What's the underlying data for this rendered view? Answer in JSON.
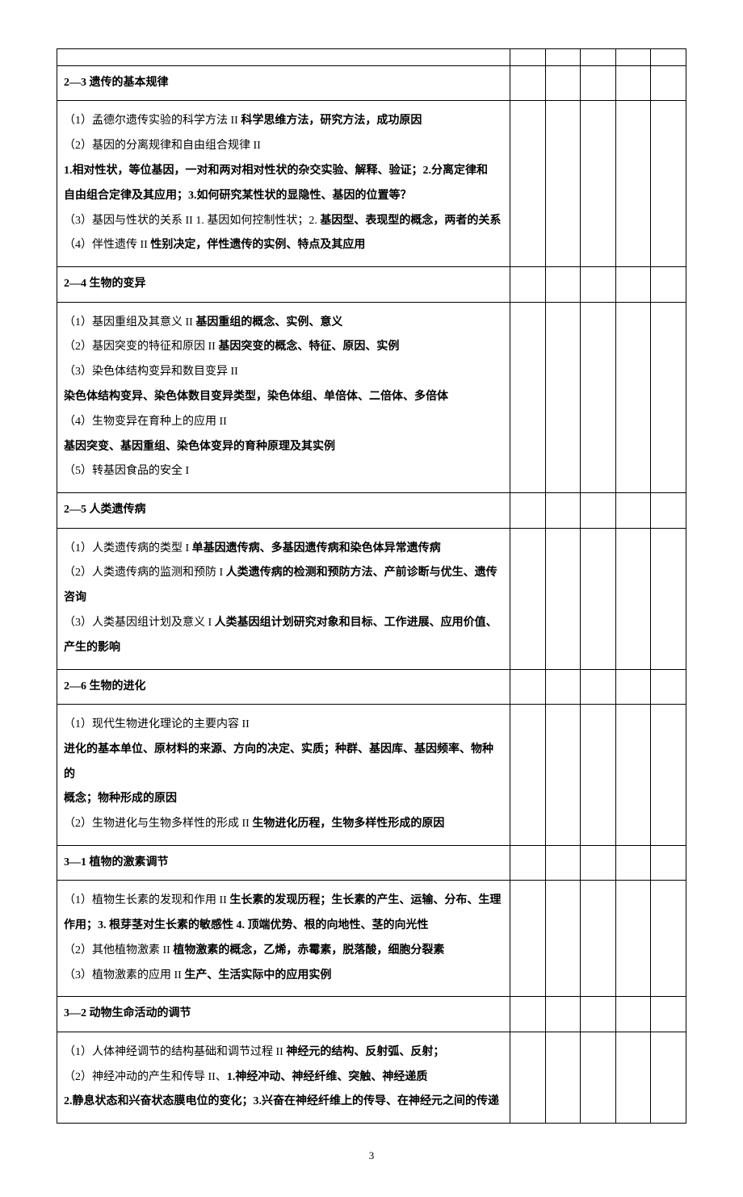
{
  "rows": [
    {
      "type": "blank"
    },
    {
      "type": "section",
      "title": "2—3 遗传的基本规律"
    },
    {
      "type": "content",
      "lines": [
        {
          "spans": [
            {
              "text": "（1）孟德尔遗传实验的科学方法  II "
            },
            {
              "text": "科学思维方法，研究方法，成功原因",
              "bold": true
            }
          ]
        },
        {
          "spans": [
            {
              "text": "（2）基因的分离规律和自由组合规律 II"
            }
          ]
        },
        {
          "spans": [
            {
              "text": "    1.相对性状，等位基因，一对和两对相对性状的杂交实验、解释、验证；2.分离定律和",
              "bold": true
            }
          ]
        },
        {
          "spans": [
            {
              "text": "自由组合定律及其应用；3.如何研究某性状的显隐性、基因的位置等？",
              "bold": true
            }
          ]
        },
        {
          "spans": [
            {
              "text": "（3）基因与性状的关系 II  1. 基因如何控制性状；2. "
            },
            {
              "text": "基因型、表现型的概念，两者的关系",
              "bold": true
            }
          ]
        },
        {
          "spans": [
            {
              "text": "（4）伴性遗传  II   "
            },
            {
              "text": "性别决定，伴性遗传的实例、特点及其应用",
              "bold": true
            }
          ]
        }
      ]
    },
    {
      "type": "section",
      "title": "2—4 生物的变异"
    },
    {
      "type": "content",
      "lines": [
        {
          "spans": [
            {
              "text": "（1）基因重组及其意义  II "
            },
            {
              "text": "基因重组的概念、实例、意义",
              "bold": true
            }
          ]
        },
        {
          "spans": [
            {
              "text": "（2）基因突变的特征和原因  II "
            },
            {
              "text": "基因突变的概念、特征、原因、实例",
              "bold": true
            }
          ]
        },
        {
          "spans": [
            {
              "text": "（3）染色体结构变异和数目变异 II"
            }
          ]
        },
        {
          "spans": [
            {
              "text": "染色体结构变异、染色体数目变异类型，染色体组、单倍体、二倍体、多倍体",
              "bold": true
            }
          ]
        },
        {
          "spans": [
            {
              "text": "（4）生物变异在育种上的应用 II"
            }
          ]
        },
        {
          "spans": [
            {
              "text": "基因突变、基因重组、染色体变异的育种原理及其实例",
              "bold": true
            }
          ]
        },
        {
          "spans": [
            {
              "text": "（5）转基因食品的安全 I"
            }
          ]
        }
      ]
    },
    {
      "type": "section",
      "title": "2—5 人类遗传病"
    },
    {
      "type": "content",
      "lines": [
        {
          "spans": [
            {
              "text": "（1）人类遗传病的类型 I  "
            },
            {
              "text": "单基因遗传病、多基因遗传病和染色体异常遗传病",
              "bold": true
            }
          ]
        },
        {
          "spans": [
            {
              "text": "（2）人类遗传病的监测和预防 I   "
            },
            {
              "text": "人类遗传病的检测和预防方法、产前诊断与优生、遗传",
              "bold": true
            }
          ]
        },
        {
          "spans": [
            {
              "text": "咨询",
              "bold": true
            }
          ]
        },
        {
          "spans": [
            {
              "text": "（3）人类基因组计划及意义 I   "
            },
            {
              "text": "人类基因组计划研究对象和目标、工作进展、应用价值、",
              "bold": true
            }
          ]
        },
        {
          "spans": [
            {
              "text": "产生的影响",
              "bold": true
            }
          ]
        }
      ]
    },
    {
      "type": "section",
      "title": "2—6 生物的进化"
    },
    {
      "type": "content",
      "lines": [
        {
          "spans": [
            {
              "text": "（1）现代生物进化理论的主要内容 II"
            }
          ]
        },
        {
          "spans": [
            {
              "text": "进化的基本单位、原材料的来源、方向的决定、实质；种群、基因库、基因频率、物种的",
              "bold": true
            }
          ]
        },
        {
          "spans": [
            {
              "text": "概念；物种形成的原因",
              "bold": true
            }
          ]
        },
        {
          "spans": [
            {
              "text": "（2）生物进化与生物多样性的形成 II   "
            },
            {
              "text": "生物进化历程，生物多样性形成的原因",
              "bold": true
            }
          ]
        }
      ]
    },
    {
      "type": "section",
      "title": "3—1 植物的激素调节"
    },
    {
      "type": "content",
      "lines": [
        {
          "spans": [
            {
              "text": "（1）植物生长素的发现和作用 II  "
            },
            {
              "text": "生长素的发现历程；生长素的产生、运输、分布、生理",
              "bold": true
            }
          ]
        },
        {
          "spans": [
            {
              "text": "作用；3.  根芽茎对生长素的敏感性  4.  顶端优势、根的向地性、茎的向光性",
              "bold": true
            }
          ]
        },
        {
          "spans": [
            {
              "text": "（2）其他植物激素  II "
            },
            {
              "text": "植物激素的概念，乙烯，赤霉素，脱落酸，细胞分裂素",
              "bold": true
            }
          ]
        },
        {
          "spans": [
            {
              "text": "（3）植物激素的应用 II "
            },
            {
              "text": "生产、生活实际中的应用实例",
              "bold": true
            }
          ]
        }
      ]
    },
    {
      "type": "section",
      "title": "3—2 动物生命活动的调节"
    },
    {
      "type": "content",
      "lines": [
        {
          "spans": [
            {
              "text": "（1）人体神经调节的结构基础和调节过程   II "
            },
            {
              "text": "神经元的结构、反射弧、反射；",
              "bold": true
            }
          ]
        },
        {
          "spans": [
            {
              "text": "（2）神经冲动的产生和传导  II、"
            },
            {
              "text": "1.神经冲动、神经纤维、突触、神经递质",
              "bold": true
            }
          ]
        },
        {
          "spans": [
            {
              "text": "2.静息状态和兴奋状态膜电位的变化；3.兴奋在神经纤维上的传导、在神经元之间的传递",
              "bold": true
            }
          ]
        }
      ]
    }
  ],
  "pageNumber": "3"
}
